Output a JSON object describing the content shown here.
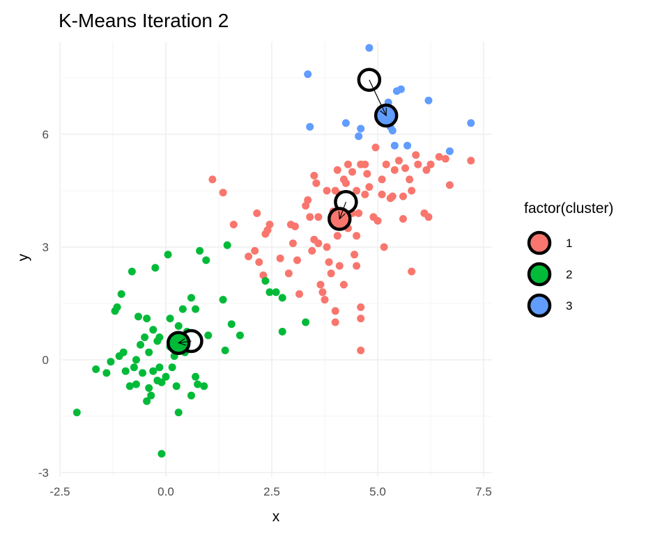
{
  "chart_data": {
    "type": "scatter",
    "title": "K-Means Iteration 2",
    "xlabel": "x",
    "ylabel": "y",
    "xlim": [
      -2.5,
      7.6
    ],
    "ylim": [
      -3,
      8.5
    ],
    "x_ticks": [
      -2.5,
      0.0,
      2.5,
      5.0,
      7.5
    ],
    "x_tick_labels": [
      "-2.5",
      "0.0",
      "2.5",
      "5.0",
      "7.5"
    ],
    "y_ticks": [
      -3,
      0,
      3,
      6
    ],
    "y_tick_labels": [
      "-3",
      "0",
      "3",
      "6"
    ],
    "grid": true,
    "legend": {
      "title": "factor(cluster)",
      "position": "right",
      "entries": [
        {
          "label": "1",
          "color": "#F8766D"
        },
        {
          "label": "2",
          "color": "#00BA38"
        },
        {
          "label": "3",
          "color": "#619CFF"
        }
      ]
    },
    "series": [
      {
        "name": "1",
        "color": "#F8766D",
        "points": [
          [
            1.1,
            4.8
          ],
          [
            1.35,
            4.45
          ],
          [
            1.6,
            3.6
          ],
          [
            1.95,
            2.75
          ],
          [
            2.1,
            2.9
          ],
          [
            2.15,
            3.9
          ],
          [
            2.2,
            2.6
          ],
          [
            2.3,
            2.25
          ],
          [
            2.35,
            3.35
          ],
          [
            2.4,
            3.45
          ],
          [
            2.45,
            3.6
          ],
          [
            2.7,
            2.7
          ],
          [
            2.9,
            2.3
          ],
          [
            2.95,
            3.6
          ],
          [
            3.0,
            3.1
          ],
          [
            3.05,
            3.55
          ],
          [
            3.1,
            2.65
          ],
          [
            3.15,
            1.75
          ],
          [
            3.3,
            4.1
          ],
          [
            3.35,
            4.25
          ],
          [
            3.4,
            3.8
          ],
          [
            3.45,
            2.9
          ],
          [
            3.5,
            3.2
          ],
          [
            3.5,
            4.9
          ],
          [
            3.55,
            4.7
          ],
          [
            3.6,
            3.8
          ],
          [
            3.6,
            3.1
          ],
          [
            3.65,
            2.0
          ],
          [
            3.7,
            1.8
          ],
          [
            3.75,
            1.6
          ],
          [
            3.8,
            4.5
          ],
          [
            3.8,
            3.0
          ],
          [
            3.85,
            2.6
          ],
          [
            3.9,
            2.3
          ],
          [
            3.95,
            3.95
          ],
          [
            4.0,
            4.5
          ],
          [
            4.0,
            1.3
          ],
          [
            4.0,
            1.0
          ],
          [
            4.05,
            5.05
          ],
          [
            4.05,
            3.3
          ],
          [
            4.1,
            4.4
          ],
          [
            4.1,
            2.5
          ],
          [
            4.15,
            3.6
          ],
          [
            4.2,
            4.8
          ],
          [
            4.2,
            2.0
          ],
          [
            4.25,
            4.7
          ],
          [
            4.3,
            5.2
          ],
          [
            4.3,
            3.5
          ],
          [
            4.35,
            4.1
          ],
          [
            4.4,
            5.0
          ],
          [
            4.4,
            3.9
          ],
          [
            4.45,
            2.8
          ],
          [
            4.5,
            4.5
          ],
          [
            4.5,
            3.3
          ],
          [
            4.5,
            2.5
          ],
          [
            4.55,
            3.9
          ],
          [
            4.6,
            5.2
          ],
          [
            4.6,
            1.4
          ],
          [
            4.6,
            1.1
          ],
          [
            4.6,
            0.25
          ],
          [
            4.7,
            5.2
          ],
          [
            4.7,
            4.4
          ],
          [
            4.75,
            4.95
          ],
          [
            4.8,
            4.6
          ],
          [
            4.9,
            3.8
          ],
          [
            4.95,
            5.65
          ],
          [
            5.0,
            3.7
          ],
          [
            5.1,
            4.8
          ],
          [
            5.1,
            4.4
          ],
          [
            5.15,
            3.0
          ],
          [
            5.2,
            5.2
          ],
          [
            5.3,
            4.3
          ],
          [
            5.35,
            4.35
          ],
          [
            5.4,
            5.05
          ],
          [
            5.5,
            5.3
          ],
          [
            5.6,
            3.75
          ],
          [
            5.6,
            4.35
          ],
          [
            5.65,
            5.1
          ],
          [
            5.75,
            4.8
          ],
          [
            5.8,
            2.35
          ],
          [
            5.8,
            4.5
          ],
          [
            5.9,
            5.45
          ],
          [
            5.95,
            5.2
          ],
          [
            6.1,
            3.9
          ],
          [
            6.15,
            5.05
          ],
          [
            6.2,
            3.8
          ],
          [
            6.25,
            5.2
          ],
          [
            6.45,
            5.4
          ],
          [
            6.6,
            5.35
          ],
          [
            6.7,
            4.65
          ],
          [
            7.2,
            5.3
          ]
        ]
      },
      {
        "name": "2",
        "color": "#00BA38",
        "points": [
          [
            -2.1,
            -1.4
          ],
          [
            -1.65,
            -0.25
          ],
          [
            -1.4,
            -0.35
          ],
          [
            -1.3,
            -0.05
          ],
          [
            -1.2,
            1.3
          ],
          [
            -1.15,
            1.4
          ],
          [
            -1.1,
            0.1
          ],
          [
            -1.05,
            1.75
          ],
          [
            -1.0,
            0.2
          ],
          [
            -0.95,
            -0.3
          ],
          [
            -0.85,
            -0.7
          ],
          [
            -0.8,
            2.35
          ],
          [
            -0.75,
            -0.2
          ],
          [
            -0.7,
            0.0
          ],
          [
            -0.7,
            -0.65
          ],
          [
            -0.65,
            1.15
          ],
          [
            -0.6,
            0.4
          ],
          [
            -0.55,
            -0.35
          ],
          [
            -0.5,
            0.6
          ],
          [
            -0.45,
            1.1
          ],
          [
            -0.45,
            -1.1
          ],
          [
            -0.4,
            0.2
          ],
          [
            -0.4,
            -0.75
          ],
          [
            -0.35,
            -0.95
          ],
          [
            -0.3,
            0.8
          ],
          [
            -0.3,
            -0.3
          ],
          [
            -0.25,
            2.45
          ],
          [
            -0.2,
            0.5
          ],
          [
            -0.2,
            -0.55
          ],
          [
            -0.15,
            0.6
          ],
          [
            -0.15,
            -0.2
          ],
          [
            -0.1,
            -0.6
          ],
          [
            -0.1,
            -2.5
          ],
          [
            0.0,
            -0.45
          ],
          [
            0.05,
            2.8
          ],
          [
            0.1,
            0.35
          ],
          [
            0.1,
            1.1
          ],
          [
            0.15,
            -0.2
          ],
          [
            0.2,
            0.1
          ],
          [
            0.25,
            -0.7
          ],
          [
            0.3,
            0.9
          ],
          [
            0.3,
            -1.4
          ],
          [
            0.4,
            1.35
          ],
          [
            0.45,
            0.2
          ],
          [
            0.5,
            0.75
          ],
          [
            0.55,
            0.3
          ],
          [
            0.6,
            -0.95
          ],
          [
            0.6,
            1.65
          ],
          [
            0.7,
            1.35
          ],
          [
            0.7,
            -0.45
          ],
          [
            0.75,
            -0.65
          ],
          [
            0.8,
            2.9
          ],
          [
            0.9,
            -0.7
          ],
          [
            0.95,
            2.65
          ],
          [
            1.0,
            0.65
          ],
          [
            1.35,
            1.6
          ],
          [
            1.4,
            0.25
          ],
          [
            1.45,
            3.05
          ],
          [
            1.55,
            0.95
          ],
          [
            1.75,
            0.65
          ],
          [
            2.35,
            2.1
          ],
          [
            2.45,
            1.8
          ],
          [
            2.6,
            1.8
          ],
          [
            2.75,
            1.65
          ],
          [
            2.75,
            0.75
          ],
          [
            3.3,
            1.0
          ]
        ]
      },
      {
        "name": "3",
        "color": "#619CFF",
        "points": [
          [
            3.35,
            7.6
          ],
          [
            3.4,
            6.2
          ],
          [
            4.25,
            6.3
          ],
          [
            4.55,
            5.95
          ],
          [
            4.6,
            6.15
          ],
          [
            4.8,
            8.3
          ],
          [
            5.25,
            6.85
          ],
          [
            5.3,
            6.2
          ],
          [
            5.35,
            6.1
          ],
          [
            5.4,
            5.7
          ],
          [
            5.45,
            7.15
          ],
          [
            5.55,
            7.2
          ],
          [
            5.7,
            5.7
          ],
          [
            6.2,
            6.9
          ],
          [
            6.7,
            5.55
          ],
          [
            7.2,
            6.3
          ]
        ]
      }
    ],
    "centroids": {
      "previous": [
        [
          0.6,
          0.5
        ],
        [
          4.25,
          4.2
        ],
        [
          4.8,
          7.45
        ]
      ],
      "current": [
        {
          "cluster": "1",
          "color": "#F8766D",
          "x": 4.1,
          "y": 3.75
        },
        {
          "cluster": "2",
          "color": "#00BA38",
          "x": 0.3,
          "y": 0.45
        },
        {
          "cluster": "3",
          "color": "#619CFF",
          "x": 5.2,
          "y": 6.5
        }
      ]
    }
  }
}
